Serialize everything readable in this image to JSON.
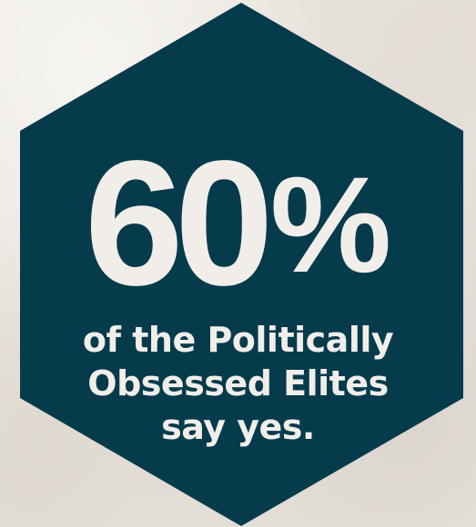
{
  "stat": {
    "number": "60",
    "percent_sign": "%",
    "caption_lines": [
      "of the Politically",
      "Obsessed Elites",
      "say yes."
    ]
  },
  "colors": {
    "hexagon_fill": "#063b4c",
    "text": "#f1eeea",
    "background": "#ece8e1"
  }
}
